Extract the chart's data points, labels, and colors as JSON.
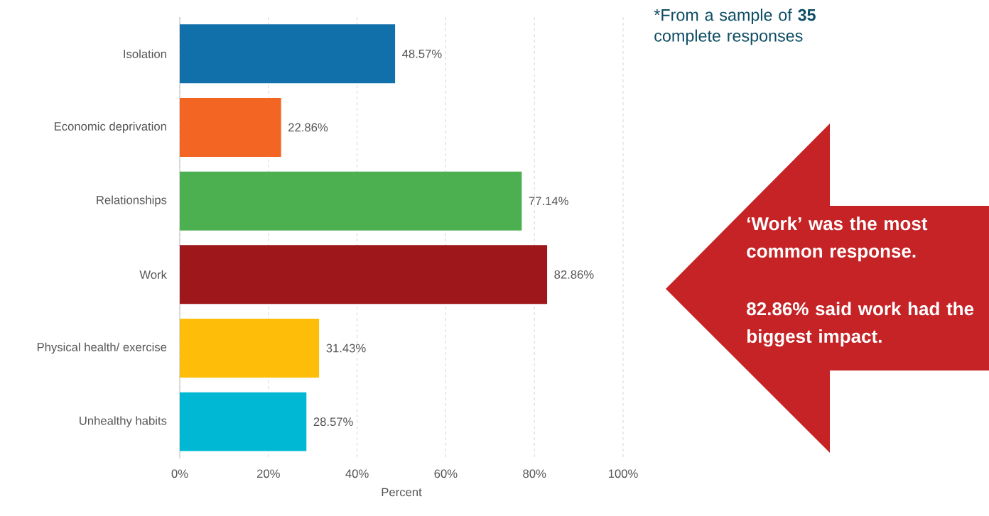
{
  "chart_data": {
    "type": "bar",
    "orientation": "horizontal",
    "categories": [
      "Isolation",
      "Economic deprivation",
      "Relationships",
      "Work",
      "Physical health/ exercise",
      "Unhealthy habits"
    ],
    "values": [
      48.57,
      22.86,
      77.14,
      82.86,
      31.43,
      28.57
    ],
    "colors": [
      "#1170aa",
      "#f26522",
      "#4caf50",
      "#9e171a",
      "#fdbd08",
      "#00b8d4"
    ],
    "value_labels": [
      "48.57%",
      "22.86%",
      "77.14%",
      "82.86%",
      "31.43%",
      "28.57%"
    ],
    "xlim": [
      0,
      100
    ],
    "xticks": [
      {
        "value": 0,
        "label": "0%"
      },
      {
        "value": 20,
        "label": "20%"
      },
      {
        "value": 40,
        "label": "40%"
      },
      {
        "value": 60,
        "label": "60%"
      },
      {
        "value": 80,
        "label": "80%"
      },
      {
        "value": 100,
        "label": "100%"
      }
    ],
    "xlabel": "Percent",
    "grid": "x",
    "annotations": [
      "*From a sample of **35** complete responses",
      "‘Work’ was the most common response.",
      "82.86% said work had the biggest impact."
    ]
  }
}
